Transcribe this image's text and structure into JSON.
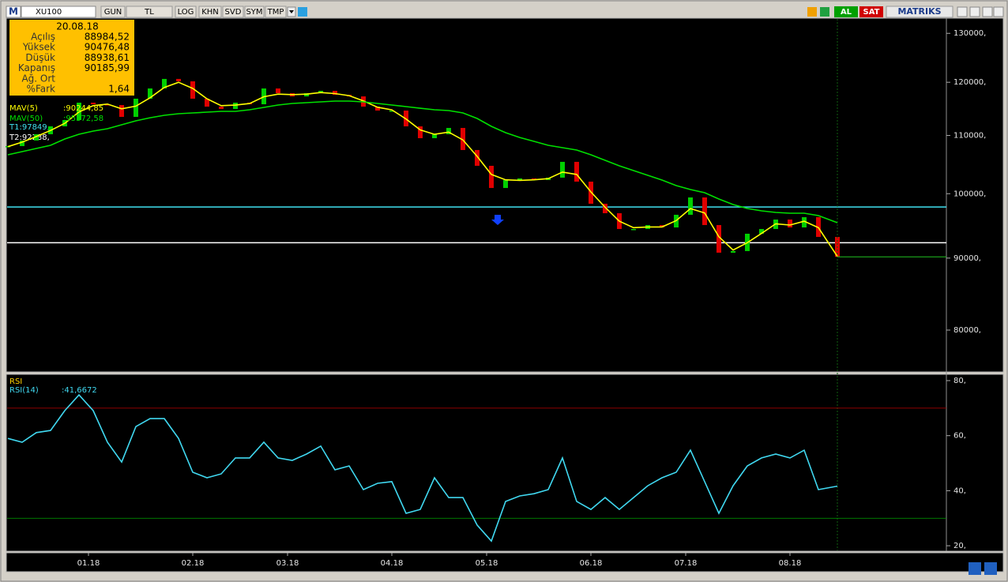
{
  "toolbar": {
    "logo": "M",
    "symbol": "XU100",
    "buttons": [
      "GUN",
      "TL",
      "LOG",
      "KHN",
      "SVD",
      "SYM",
      "TMP"
    ],
    "buy": "AL",
    "sell": "SAT",
    "brand": "MATRIKS"
  },
  "info": {
    "date": "20.08.18",
    "rows": [
      {
        "label": "Açılış",
        "value": "88984,52"
      },
      {
        "label": "Yüksek",
        "value": "90476,48"
      },
      {
        "label": "Düşük",
        "value": "88938,61"
      },
      {
        "label": "Kapanış",
        "value": "90185,99"
      },
      {
        "label": "Ağ. Ort"
      },
      {
        "label": "%Fark",
        "value": "1,64"
      }
    ]
  },
  "chart_data": [
    {
      "type": "candlestick",
      "log_scale": true,
      "up_color": "#00d000",
      "down_color": "#e00000",
      "x": [
        0,
        3,
        6,
        9,
        12,
        15,
        18,
        21,
        24,
        27,
        30,
        33,
        36,
        39,
        42,
        45,
        48,
        51,
        54,
        57,
        60,
        63,
        66,
        69,
        72,
        75,
        78,
        81,
        84,
        87,
        90,
        93,
        96,
        99,
        102,
        105,
        108,
        111,
        114,
        117,
        120,
        123,
        126,
        129,
        132,
        135,
        138,
        141,
        144,
        147,
        150,
        153,
        156,
        159,
        162,
        165,
        168,
        171,
        175
      ],
      "xlim": [
        0,
        198
      ],
      "values": [
        108100,
        109090,
        110220,
        111650,
        112810,
        116060,
        115760,
        115610,
        113390,
        116820,
        118790,
        120660,
        120190,
        116820,
        115310,
        114870,
        116060,
        115760,
        118790,
        117870,
        117260,
        117870,
        118330,
        117570,
        117260,
        115310,
        114570,
        114570,
        111650,
        109510,
        110220,
        111360,
        107410,
        104670,
        100940,
        102260,
        102530,
        102260,
        102660,
        105350,
        101990,
        98370,
        96860,
        94390,
        94390,
        95000,
        94630,
        96610,
        99390,
        95000,
        90800,
        91040,
        93660,
        94390,
        95860,
        94630,
        96230,
        93170,
        90186
      ],
      "series": [
        {
          "name": "MAV(5)",
          "color": "#ffff00",
          "last_label": ":90244,85",
          "values": [
            108000,
            108800,
            109800,
            110900,
            112200,
            114300,
            115500,
            115800,
            114900,
            115400,
            117000,
            119000,
            120000,
            118800,
            116800,
            115500,
            115600,
            115900,
            117200,
            117700,
            117600,
            117700,
            118000,
            117800,
            117400,
            116400,
            115200,
            114700,
            113000,
            111000,
            110200,
            110600,
            109200,
            106300,
            103200,
            102300,
            102200,
            102300,
            102500,
            103600,
            103200,
            100300,
            97800,
            95600,
            94600,
            94700,
            94700,
            95700,
            97600,
            96900,
            93200,
            91200,
            92300,
            93700,
            95200,
            95000,
            95600,
            94600,
            90245
          ]
        },
        {
          "name": "MAV(50)",
          "color": "#00e000",
          "last_label": ":95372,58",
          "values": [
            106580,
            107130,
            107690,
            108240,
            109370,
            110220,
            110790,
            111220,
            111940,
            112660,
            113240,
            113690,
            113980,
            114130,
            114280,
            114420,
            114420,
            114720,
            115160,
            115610,
            115910,
            116060,
            116210,
            116360,
            116360,
            116210,
            115910,
            115610,
            115310,
            115010,
            114720,
            114570,
            114130,
            113100,
            111650,
            110500,
            109640,
            108940,
            108240,
            107820,
            107410,
            106580,
            105620,
            104670,
            103860,
            103050,
            102260,
            101340,
            100690,
            100170,
            99140,
            98240,
            97610,
            97230,
            96980,
            96860,
            96860,
            96480,
            95373
          ]
        }
      ],
      "levels": [
        {
          "label": "T1:97849,",
          "value": 97849,
          "color": "#40e0f0"
        },
        {
          "label": "T2:92288,",
          "value": 92288,
          "color": "#ffffff"
        }
      ],
      "ylim": [
        74800,
        133100
      ],
      "yticks": [
        {
          "value": 80000,
          "label": "80000,"
        },
        {
          "value": 90000,
          "label": "90000,"
        },
        {
          "value": 100000,
          "label": "100000,"
        },
        {
          "value": 110000,
          "label": "110000,"
        },
        {
          "value": 120000,
          "label": "120000,"
        },
        {
          "value": 130000,
          "label": "130000,"
        }
      ]
    },
    {
      "type": "line",
      "title": "RSI",
      "series": [
        {
          "name": "RSI(14)",
          "color": "#40d8f0",
          "last_label": ":41,6672",
          "values": [
            59.0,
            57.6,
            61.1,
            61.9,
            69.1,
            74.8,
            69.1,
            57.6,
            50.4,
            63.3,
            66.2,
            66.2,
            59.0,
            46.7,
            44.7,
            46.1,
            51.9,
            51.9,
            57.6,
            51.9,
            51.0,
            53.3,
            56.2,
            47.6,
            49.0,
            40.4,
            42.7,
            43.3,
            31.8,
            33.2,
            44.7,
            37.5,
            37.5,
            27.5,
            21.7,
            36.1,
            38.1,
            38.9,
            40.4,
            51.9,
            36.1,
            33.2,
            37.5,
            33.2,
            37.5,
            41.8,
            44.7,
            46.7,
            54.7,
            43.3,
            31.8,
            41.8,
            49.0,
            51.9,
            53.3,
            51.9,
            54.7,
            40.4,
            41.67
          ]
        }
      ],
      "levels": [
        {
          "value": 70,
          "color": "#a00000"
        },
        {
          "value": 30,
          "color": "#00a000"
        }
      ],
      "ylim": [
        18.3,
        82
      ],
      "yticks": [
        {
          "value": 20,
          "label": "20,"
        },
        {
          "value": 40,
          "label": "40,"
        },
        {
          "value": 60,
          "label": "60,"
        },
        {
          "value": 80,
          "label": "80,"
        }
      ],
      "xticks": [
        {
          "value": 17,
          "label": "01.18"
        },
        {
          "value": 39,
          "label": "02.18"
        },
        {
          "value": 59,
          "label": "03.18"
        },
        {
          "value": 81,
          "label": "04.18"
        },
        {
          "value": 101,
          "label": "05.18"
        },
        {
          "value": 123,
          "label": "06.18"
        },
        {
          "value": 143,
          "label": "07.18"
        },
        {
          "value": 165,
          "label": "08.18"
        }
      ]
    }
  ]
}
